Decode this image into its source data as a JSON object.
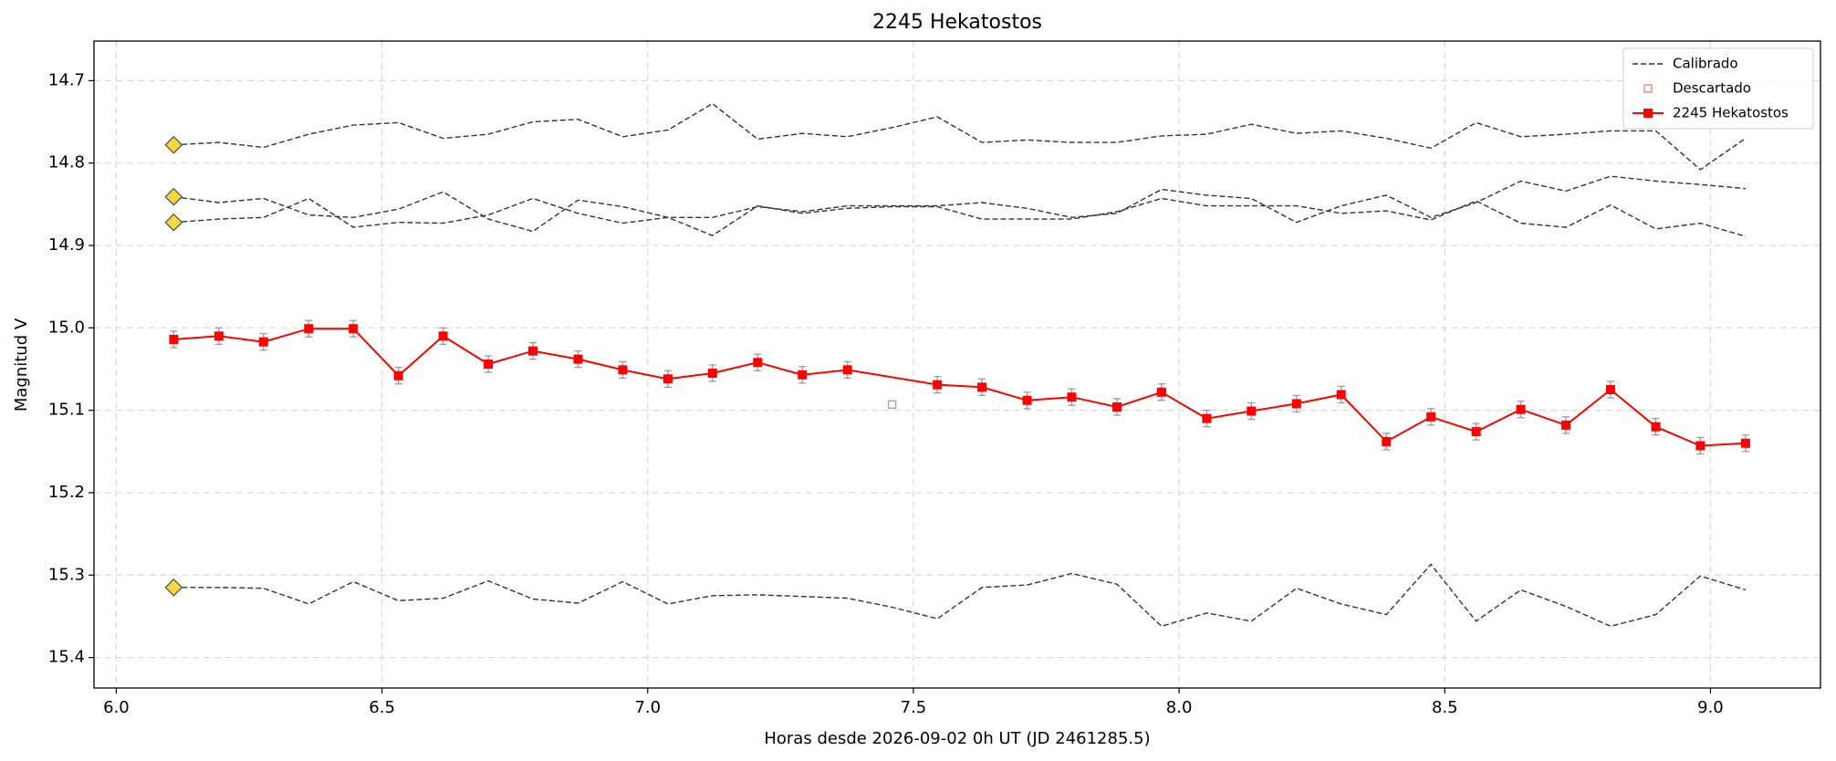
{
  "chart_data": {
    "type": "line",
    "title": "2245 Hekatostos",
    "xlabel": "Horas desde 2026-09-02 0h UT (JD 2461285.5)",
    "ylabel": "Magnitud V",
    "xlim": [
      5.958,
      9.207
    ],
    "ylim": [
      14.652,
      15.437
    ],
    "y_inverted": true,
    "grid": true,
    "legend": "upper right",
    "xticks": [
      {
        "value": 6.0,
        "label": "6.0"
      },
      6.5,
      {
        "value": 7.0,
        "label": "7.0"
      },
      7.5,
      {
        "value": 8.0,
        "label": "8.0"
      },
      8.5,
      {
        "value": 9.0,
        "label": "9.0"
      }
    ],
    "yticks": [
      14.7,
      14.8,
      14.9,
      {
        "value": 15.0,
        "label": "15.0"
      },
      15.1,
      15.2,
      15.3,
      15.4
    ],
    "x": [
      6.108,
      6.193,
      6.277,
      6.362,
      6.446,
      6.531,
      6.615,
      6.7,
      6.784,
      6.869,
      6.953,
      7.038,
      7.122,
      7.207,
      7.291,
      7.376,
      7.46,
      7.545,
      7.629,
      7.714,
      7.798,
      7.883,
      7.967,
      8.052,
      8.136,
      8.221,
      8.305,
      8.39,
      8.474,
      8.559,
      8.643,
      8.728,
      8.812,
      8.897,
      8.981,
      9.066
    ],
    "series": [
      {
        "name": "Calibrado",
        "color": "#333333",
        "lines": [
          [
            14.778,
            14.775,
            14.781,
            14.765,
            14.754,
            14.751,
            14.77,
            14.765,
            14.75,
            14.747,
            14.768,
            14.76,
            14.728,
            14.771,
            14.764,
            14.768,
            14.757,
            14.744,
            14.775,
            14.772,
            14.775,
            14.775,
            14.767,
            14.765,
            14.753,
            14.764,
            14.761,
            14.77,
            14.782,
            14.751,
            14.768,
            14.765,
            14.761,
            14.761,
            14.808,
            14.77
          ],
          [
            14.841,
            14.848,
            14.843,
            14.863,
            14.866,
            14.856,
            14.835,
            14.868,
            14.883,
            14.845,
            14.853,
            14.866,
            14.866,
            14.853,
            14.859,
            14.852,
            14.852,
            14.852,
            14.848,
            14.855,
            14.866,
            14.861,
            14.832,
            14.839,
            14.843,
            14.872,
            14.852,
            14.839,
            14.866,
            14.848,
            14.822,
            14.834,
            14.816,
            14.822,
            14.826,
            14.831
          ],
          [
            14.872,
            14.868,
            14.866,
            14.843,
            14.878,
            14.872,
            14.873,
            14.863,
            14.843,
            14.861,
            14.873,
            14.866,
            14.888,
            14.852,
            14.861,
            14.855,
            14.853,
            14.853,
            14.868,
            14.868,
            14.868,
            14.859,
            14.843,
            14.852,
            14.852,
            14.852,
            14.861,
            14.858,
            14.869,
            14.846,
            14.873,
            14.878,
            14.851,
            14.88,
            14.873,
            14.889
          ],
          [
            15.315,
            15.315,
            15.316,
            15.335,
            15.308,
            15.331,
            15.328,
            15.307,
            15.329,
            15.334,
            15.308,
            15.335,
            15.325,
            15.324,
            15.326,
            15.328,
            15.339,
            15.353,
            15.315,
            15.312,
            15.298,
            15.311,
            15.362,
            15.346,
            15.356,
            15.316,
            15.335,
            15.348,
            15.287,
            15.356,
            15.318,
            15.338,
            15.362,
            15.348,
            15.301,
            15.318
          ]
        ]
      },
      {
        "name": "Descartado",
        "color": "#f08080",
        "x": [
          7.46
        ],
        "values": [
          15.093
        ]
      },
      {
        "name": "2245 Hekatostos",
        "color": "#ff0000",
        "error_color": "#999999",
        "x": [
          6.108,
          6.193,
          6.277,
          6.362,
          6.446,
          6.531,
          6.615,
          6.7,
          6.784,
          6.869,
          6.953,
          7.038,
          7.122,
          7.207,
          7.291,
          7.376,
          7.545,
          7.629,
          7.714,
          7.798,
          7.883,
          7.967,
          8.052,
          8.136,
          8.221,
          8.305,
          8.39,
          8.474,
          8.559,
          8.643,
          8.728,
          8.812,
          8.897,
          8.981,
          9.066
        ],
        "values": [
          15.014,
          15.01,
          15.017,
          15.001,
          15.001,
          15.058,
          15.01,
          15.044,
          15.028,
          15.038,
          15.051,
          15.062,
          15.055,
          15.042,
          15.057,
          15.051,
          15.069,
          15.072,
          15.088,
          15.084,
          15.096,
          15.078,
          15.11,
          15.101,
          15.092,
          15.081,
          15.138,
          15.108,
          15.126,
          15.099,
          15.118,
          15.075,
          15.12,
          15.143,
          15.14
        ],
        "errors": [
          0.01,
          0.01,
          0.01,
          0.01,
          0.01,
          0.01,
          0.01,
          0.01,
          0.01,
          0.01,
          0.01,
          0.01,
          0.01,
          0.01,
          0.01,
          0.01,
          0.01,
          0.01,
          0.01,
          0.01,
          0.01,
          0.01,
          0.01,
          0.01,
          0.01,
          0.01,
          0.01,
          0.01,
          0.01,
          0.01,
          0.01,
          0.01,
          0.01,
          0.01,
          0.01
        ]
      }
    ],
    "comparison_marker_color": "#f5d742"
  }
}
